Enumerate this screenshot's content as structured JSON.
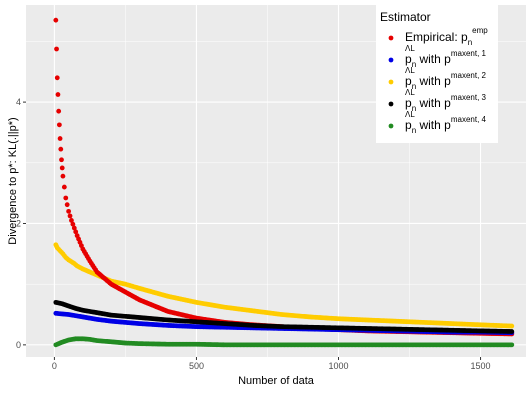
{
  "chart_data": {
    "type": "scatter",
    "title": "",
    "xlabel": "Number of data",
    "ylabel": "Divergence to p*: KL(.||p*)",
    "xlim": [
      -100,
      1660
    ],
    "ylim": [
      -0.2,
      5.6
    ],
    "xticks": [
      0,
      500,
      1000,
      1500
    ],
    "yticks": [
      0,
      2,
      4
    ],
    "grid": true,
    "background": "#EBEBEB",
    "legend": {
      "title": "Estimator",
      "placement": "top-right",
      "entries": [
        {
          "base": "Empirical: p",
          "sub": "n",
          "sup": "emp"
        },
        {
          "base": "p",
          "sub": "n",
          "accent": "Λ",
          "accent_sup": "L",
          "mid": " with p",
          "sup": "maxent, 1"
        },
        {
          "base": "p",
          "sub": "n",
          "accent": "Λ",
          "accent_sup": "L",
          "mid": " with p",
          "sup": "maxent, 2"
        },
        {
          "base": "p",
          "sub": "n",
          "accent": "Λ",
          "accent_sup": "L",
          "mid": " with p",
          "sup": "maxent, 3"
        },
        {
          "base": "p",
          "sub": "n",
          "accent": "Λ",
          "accent_sup": "L",
          "mid": " with p",
          "sup": "maxent, 4"
        }
      ]
    },
    "series": [
      {
        "color": "#E60000",
        "x": [
          5,
          10,
          15,
          20,
          25,
          30,
          40,
          50,
          60,
          80,
          100,
          125,
          150,
          200,
          250,
          300,
          400,
          500,
          600,
          700,
          800,
          900,
          1000,
          1100,
          1200,
          1300,
          1400,
          1500,
          1610
        ],
        "y": [
          5.35,
          4.4,
          3.85,
          3.4,
          3.05,
          2.78,
          2.42,
          2.2,
          2.05,
          1.8,
          1.58,
          1.38,
          1.2,
          1.0,
          0.87,
          0.74,
          0.55,
          0.44,
          0.37,
          0.33,
          0.3,
          0.27,
          0.25,
          0.23,
          0.22,
          0.21,
          0.2,
          0.19,
          0.18
        ]
      },
      {
        "color": "#0000E6",
        "x": [
          5,
          25,
          50,
          75,
          100,
          150,
          200,
          300,
          400,
          500,
          600,
          700,
          800,
          900,
          1000,
          1100,
          1200,
          1300,
          1400,
          1500,
          1610
        ],
        "y": [
          0.52,
          0.51,
          0.5,
          0.48,
          0.46,
          0.42,
          0.39,
          0.35,
          0.32,
          0.3,
          0.29,
          0.28,
          0.27,
          0.26,
          0.25,
          0.24,
          0.23,
          0.22,
          0.21,
          0.21,
          0.2
        ]
      },
      {
        "color": "#FFCC00",
        "x": [
          5,
          10,
          20,
          30,
          40,
          50,
          60,
          70,
          80,
          100,
          125,
          150,
          175,
          200,
          250,
          300,
          400,
          500,
          600,
          700,
          800,
          900,
          1000,
          1100,
          1200,
          1300,
          1400,
          1500,
          1610
        ],
        "y": [
          1.65,
          1.6,
          1.55,
          1.5,
          1.44,
          1.4,
          1.37,
          1.34,
          1.3,
          1.25,
          1.2,
          1.15,
          1.1,
          1.05,
          1.0,
          0.93,
          0.8,
          0.7,
          0.62,
          0.56,
          0.5,
          0.46,
          0.43,
          0.41,
          0.39,
          0.37,
          0.35,
          0.33,
          0.31
        ]
      },
      {
        "color": "#000000",
        "x": [
          5,
          25,
          50,
          75,
          100,
          150,
          200,
          300,
          400,
          500,
          600,
          700,
          800,
          900,
          1000,
          1100,
          1200,
          1300,
          1400,
          1500,
          1610
        ],
        "y": [
          0.7,
          0.68,
          0.64,
          0.6,
          0.57,
          0.53,
          0.49,
          0.45,
          0.41,
          0.38,
          0.35,
          0.32,
          0.3,
          0.29,
          0.28,
          0.27,
          0.26,
          0.25,
          0.24,
          0.23,
          0.22
        ]
      },
      {
        "color": "#228B22",
        "x": [
          5,
          25,
          50,
          75,
          100,
          125,
          150,
          200,
          250,
          300,
          400,
          500,
          600,
          800,
          1000,
          1200,
          1400,
          1610
        ],
        "y": [
          0.0,
          0.04,
          0.08,
          0.1,
          0.1,
          0.09,
          0.07,
          0.05,
          0.03,
          0.02,
          0.01,
          0.01,
          0.0,
          0.0,
          0.0,
          0.0,
          0.0,
          0.0
        ]
      }
    ]
  }
}
